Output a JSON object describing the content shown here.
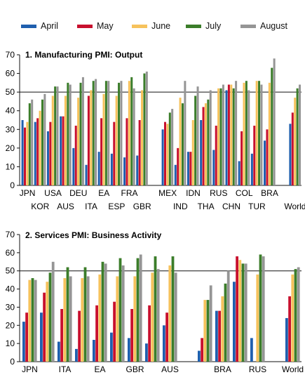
{
  "legend": [
    {
      "label": "April",
      "color": "#1f5fae"
    },
    {
      "label": "May",
      "color": "#c8102e"
    },
    {
      "label": "June",
      "color": "#f6c25c"
    },
    {
      "label": "July",
      "color": "#3b7d2a"
    },
    {
      "label": "August",
      "color": "#959595"
    }
  ],
  "chart_data": [
    {
      "type": "bar",
      "title": "1. Manufacturing PMI: Output",
      "ylim": [
        0,
        70
      ],
      "yticks": [
        0,
        10,
        20,
        30,
        40,
        50,
        60,
        70
      ],
      "reference_line": 50,
      "series_names": [
        "April",
        "May",
        "June",
        "July",
        "August"
      ],
      "groups": [
        {
          "label": "JPN",
          "values": [
            35,
            31,
            34,
            44,
            46
          ]
        },
        {
          "label": "KOR",
          "values": [
            34,
            36,
            40,
            46,
            49
          ]
        },
        {
          "label": "USA",
          "values": [
            29,
            34,
            48,
            53,
            53
          ]
        },
        {
          "label": "AUS",
          "values": [
            37,
            37,
            48,
            55,
            54
          ]
        },
        {
          "label": "DEU",
          "values": [
            20,
            32,
            47,
            55,
            58
          ]
        },
        {
          "label": "ITA",
          "values": [
            11,
            48,
            51,
            56,
            57
          ]
        },
        {
          "label": "EA",
          "values": [
            18,
            36,
            49,
            56,
            56
          ]
        },
        {
          "label": "ESP",
          "values": [
            17,
            34,
            48,
            55,
            56
          ]
        },
        {
          "label": "FRA",
          "values": [
            15,
            36,
            56,
            58,
            52
          ]
        },
        {
          "label": "GBR",
          "values": [
            16,
            35,
            51,
            60,
            61
          ]
        },
        {
          "label": "",
          "values": [
            null,
            null,
            null,
            null,
            null
          ]
        },
        {
          "label": "MEX",
          "values": [
            30,
            34,
            33,
            39,
            41
          ]
        },
        {
          "label": "IND",
          "values": [
            11,
            20,
            47,
            44,
            56
          ]
        },
        {
          "label": "IDN",
          "values": [
            18,
            18,
            35,
            48,
            53
          ]
        },
        {
          "label": "THA",
          "values": [
            35,
            42,
            44,
            46,
            51
          ]
        },
        {
          "label": "RUS",
          "values": [
            19,
            32,
            52,
            52,
            54
          ]
        },
        {
          "label": "CHN",
          "values": [
            51,
            54,
            54,
            52,
            56
          ]
        },
        {
          "label": "COL",
          "values": [
            13,
            29,
            55,
            56,
            51
          ]
        },
        {
          "label": "TUR",
          "values": [
            17,
            32,
            56,
            56,
            54
          ]
        },
        {
          "label": "BRA",
          "values": [
            24,
            30,
            55,
            63,
            68
          ]
        },
        {
          "label": "",
          "values": [
            null,
            null,
            null,
            null,
            null
          ]
        },
        {
          "label": "World",
          "values": [
            33,
            39,
            47,
            52,
            54
          ]
        }
      ],
      "axis_labels_top": [
        "JPN",
        "USA",
        "DEU",
        "EA",
        "FRA",
        "MEX",
        "IDN",
        "RUS",
        "COL",
        "BRA"
      ],
      "axis_labels_bottom": [
        "KOR",
        "AUS",
        "ITA",
        "ESP",
        "GBR",
        "IND",
        "THA",
        "CHN",
        "TUR",
        "World"
      ]
    },
    {
      "type": "bar",
      "title": "2. Services PMI: Business Activity",
      "ylim": [
        0,
        70
      ],
      "yticks": [
        0,
        10,
        20,
        30,
        40,
        50,
        60,
        70
      ],
      "reference_line": 50,
      "series_names": [
        "April",
        "May",
        "June",
        "July",
        "August"
      ],
      "groups": [
        {
          "label": "JPN",
          "values": [
            22,
            27,
            45,
            46,
            45
          ]
        },
        {
          "label": "",
          "values": [
            27,
            38,
            44,
            49,
            55
          ]
        },
        {
          "label": "ITA",
          "values": [
            11,
            29,
            46,
            52,
            47
          ]
        },
        {
          "label": "",
          "values": [
            7,
            28,
            46,
            52,
            47
          ]
        },
        {
          "label": "EA",
          "values": [
            12,
            31,
            48,
            55,
            54
          ]
        },
        {
          "label": "",
          "values": [
            16,
            33,
            47,
            57,
            53
          ]
        },
        {
          "label": "GBR",
          "values": [
            13,
            29,
            47,
            57,
            59
          ]
        },
        {
          "label": "",
          "values": [
            10,
            31,
            49,
            58,
            51
          ]
        },
        {
          "label": "AUS",
          "values": [
            20,
            27,
            53,
            58,
            49
          ]
        },
        {
          "label": "",
          "values": [
            null,
            null,
            null,
            null,
            null
          ]
        },
        {
          "label": "",
          "values": [
            6,
            13,
            34,
            34,
            42
          ]
        },
        {
          "label": "BRA",
          "values": [
            28,
            28,
            36,
            43,
            50
          ]
        },
        {
          "label": "",
          "values": [
            44,
            58,
            56,
            54,
            54
          ]
        },
        {
          "label": "RUS",
          "values": [
            13,
            null,
            48,
            59,
            58
          ]
        },
        {
          "label": "",
          "values": [
            null,
            null,
            null,
            null,
            null
          ]
        },
        {
          "label": "World",
          "values": [
            24,
            36,
            48,
            51,
            52
          ]
        }
      ],
      "axis_labels_top": [
        "JPN",
        "ITA",
        "EA",
        "GBR",
        "AUS",
        "BRA",
        "RUS",
        "World"
      ],
      "axis_labels_bottom": []
    }
  ]
}
